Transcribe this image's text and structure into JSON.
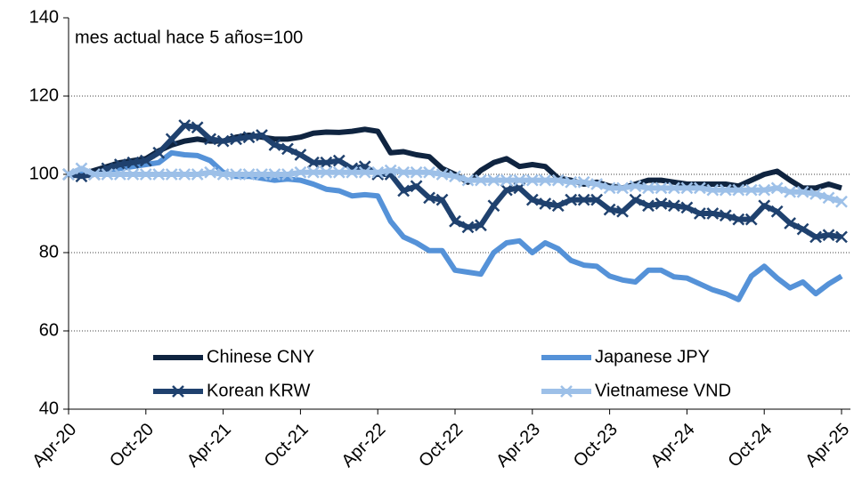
{
  "chart_data": {
    "type": "line",
    "annotation": "mes actual hace 5 años=100",
    "categories": [
      "Apr-20",
      null,
      null,
      null,
      null,
      null,
      "Oct-20",
      null,
      null,
      null,
      null,
      null,
      "Apr-21",
      null,
      null,
      null,
      null,
      null,
      "Oct-21",
      null,
      null,
      null,
      null,
      null,
      "Apr-22",
      null,
      null,
      null,
      null,
      null,
      "Oct-22",
      null,
      null,
      null,
      null,
      null,
      "Apr-23",
      null,
      null,
      null,
      null,
      null,
      "Oct-23",
      null,
      null,
      null,
      null,
      null,
      "Apr-24",
      null,
      null,
      null,
      null,
      null,
      "Oct-24",
      null,
      null,
      null,
      null,
      null,
      "Apr-25"
    ],
    "series": [
      {
        "name": "Chinese CNY",
        "color": "#0f2440",
        "marker": "none",
        "values": [
          100,
          100,
          101,
          102,
          103,
          103.5,
          104,
          106,
          107.5,
          108.5,
          109,
          108.5,
          108.5,
          109.5,
          110,
          109.5,
          109,
          109,
          109.5,
          110.5,
          110.8,
          110.7,
          111,
          111.5,
          111,
          105.5,
          105.8,
          105,
          104.5,
          101.5,
          100,
          98,
          101,
          103,
          104,
          102,
          102.5,
          102,
          99,
          98.5,
          97.5,
          98,
          97,
          96.5,
          97.5,
          98.5,
          98.5,
          98,
          97.5,
          97.5,
          97.5,
          97.5,
          97,
          98.5,
          100,
          100.8,
          98.5,
          96.5,
          96.5,
          97.5,
          96.5
        ]
      },
      {
        "name": "Japanese JPY",
        "color": "#5592d8",
        "marker": "none",
        "values": [
          100,
          100.5,
          100,
          101,
          101.5,
          102,
          102.5,
          103,
          105.5,
          105,
          104.8,
          103.5,
          100.5,
          99.5,
          99.5,
          99,
          98.5,
          98.8,
          98.5,
          97.5,
          96.2,
          95.8,
          94.5,
          94.8,
          94.5,
          88,
          84,
          82.5,
          80.5,
          80.5,
          75.5,
          75,
          74.5,
          80,
          82.5,
          83,
          80,
          82.5,
          81,
          78,
          76.8,
          76.5,
          74,
          73,
          72.5,
          75.5,
          75.5,
          73.8,
          73.5,
          72,
          70.5,
          69.5,
          68,
          74,
          76.5,
          73.5,
          71,
          72.5,
          69.5,
          72,
          74
        ]
      },
      {
        "name": "Korean KRW",
        "color": "#1f416e",
        "marker": "x",
        "values": [
          100,
          99.5,
          100,
          101.5,
          102.5,
          103,
          103.5,
          105.5,
          109,
          112.5,
          112,
          109,
          108.5,
          109,
          109.5,
          110,
          107.5,
          106.5,
          105,
          103,
          103,
          103.5,
          101.5,
          102,
          100,
          100,
          95.8,
          97,
          94,
          93.5,
          88,
          86.5,
          87,
          92,
          96,
          96.5,
          93.5,
          92.5,
          92,
          93.5,
          93.5,
          93.5,
          91,
          90.5,
          93.5,
          92,
          92.5,
          92,
          91.5,
          90,
          90,
          89.5,
          88.5,
          88.5,
          92,
          90.5,
          87.5,
          86,
          84,
          84.5,
          84
        ]
      },
      {
        "name": "Vietnamese VND",
        "color": "#9dc0e8",
        "marker": "x",
        "values": [
          100,
          101.5,
          100,
          100,
          100,
          100,
          100,
          100,
          100,
          100,
          100,
          100.5,
          100,
          100,
          100,
          100,
          100,
          100,
          100.5,
          100.5,
          100.5,
          100.5,
          100.5,
          100.5,
          100.5,
          101,
          100.5,
          100.5,
          100.5,
          100,
          99.5,
          98.5,
          98.5,
          98.5,
          98.5,
          98.5,
          98.5,
          98.5,
          98.5,
          98,
          98,
          97.5,
          96.5,
          96.5,
          97,
          96.5,
          96.5,
          96.5,
          96.5,
          96.5,
          96,
          96,
          96,
          96,
          96,
          96.5,
          95.5,
          95.5,
          95,
          94,
          93
        ]
      }
    ],
    "ylim": [
      40,
      140
    ],
    "yticks": [
      40,
      60,
      80,
      100,
      120,
      140
    ],
    "grid": true,
    "legend": "bottom"
  }
}
